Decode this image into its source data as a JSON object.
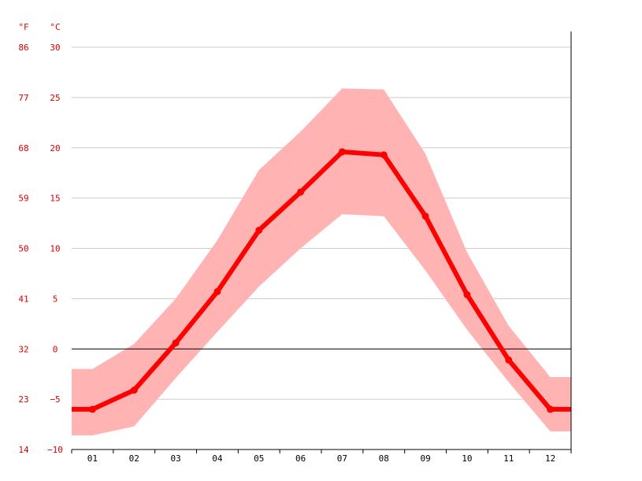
{
  "chart_data": {
    "type": "line",
    "title": "",
    "xlabel": "",
    "ylabel": "",
    "categories": [
      "01",
      "02",
      "03",
      "04",
      "05",
      "06",
      "07",
      "08",
      "09",
      "10",
      "11",
      "12"
    ],
    "y_unit_c": "°C",
    "y_unit_f": "°F",
    "ylim": [
      -10,
      30
    ],
    "y_ticks_c": [
      "30",
      "25",
      "20",
      "15",
      "10",
      "5",
      "0",
      "−5",
      "−10"
    ],
    "y_ticks_f": [
      "86",
      "77",
      "68",
      "59",
      "50",
      "41",
      "32",
      "23",
      "14"
    ],
    "grid": true,
    "series": [
      {
        "values": [
          -6.0,
          -4.1,
          0.6,
          5.7,
          11.8,
          15.6,
          19.6,
          19.3,
          13.2,
          5.4,
          -1.1,
          -6.0
        ]
      }
    ],
    "range_max": [
      -2.0,
      0.5,
      5.0,
      10.8,
      17.8,
      21.6,
      25.9,
      25.8,
      19.4,
      9.6,
      2.3,
      -2.8
    ],
    "range_min": [
      -8.6,
      -7.7,
      -2.9,
      1.7,
      6.2,
      10.0,
      13.4,
      13.2,
      7.8,
      1.9,
      -3.3,
      -8.2
    ],
    "colors": {
      "line": "#ff0000",
      "range": "#ffb3b3",
      "grid": "#cccccc",
      "zero_line": "#000000",
      "y_labels": "#dd0000",
      "x_labels": "#000000"
    }
  }
}
